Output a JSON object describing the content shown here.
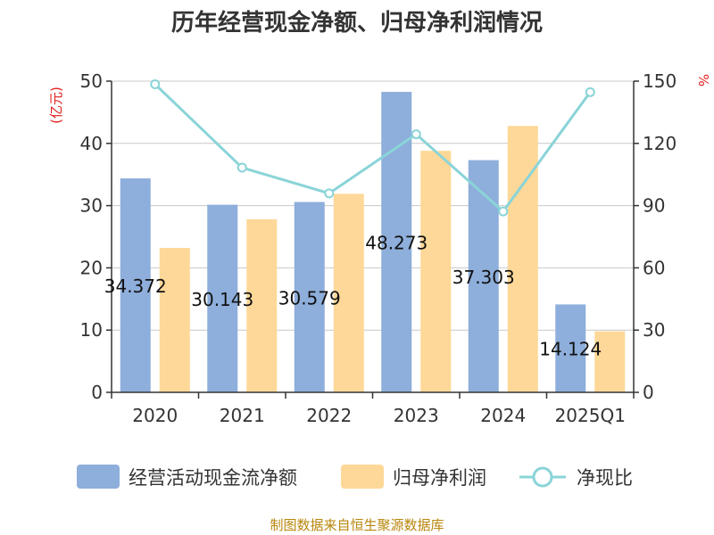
{
  "chart_data": {
    "type": "bar",
    "title": "历年经营现金净额、归母净利润情况",
    "categories": [
      "2020",
      "2021",
      "2022",
      "2023",
      "2024",
      "2025Q1"
    ],
    "y_left": {
      "unit": "(亿元)",
      "range": [
        0,
        50
      ],
      "ticks": [
        "0",
        "10",
        "20",
        "30",
        "40",
        "50"
      ]
    },
    "y_right": {
      "unit": "%",
      "range": [
        0,
        150
      ],
      "ticks": [
        "0",
        "30",
        "60",
        "90",
        "120",
        "150"
      ]
    },
    "series": [
      {
        "name": "经营活动现金流净额",
        "type": "bar",
        "axis": "left",
        "color": "#8eaedb",
        "values": [
          34.372,
          30.143,
          30.579,
          48.273,
          37.303,
          14.124
        ],
        "labels": [
          "34.372",
          "30.143",
          "30.579",
          "48.273",
          "37.303",
          "14.124"
        ]
      },
      {
        "name": "归母净利润",
        "type": "bar",
        "axis": "left",
        "color": "#fed898",
        "values": [
          23.2,
          27.8,
          31.9,
          38.8,
          42.8,
          9.8
        ]
      },
      {
        "name": "净现比",
        "type": "line",
        "axis": "right",
        "color": "#8ad4d8",
        "values": [
          148.5,
          108.3,
          95.9,
          124.4,
          87.2,
          144.7
        ]
      }
    ],
    "grid": true,
    "legend_position": "bottom"
  },
  "source": "制图数据来自恒生聚源数据库"
}
